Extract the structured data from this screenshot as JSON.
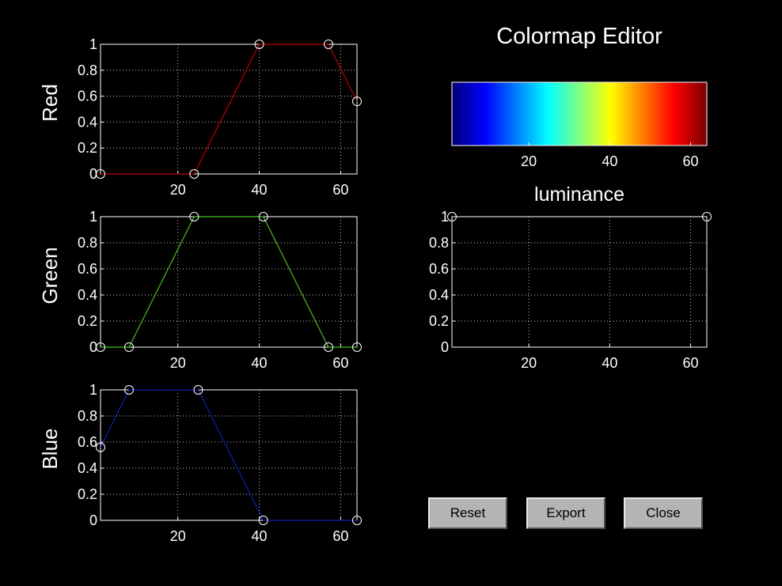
{
  "window": {
    "title": "Colormap Editor"
  },
  "buttons": {
    "reset": "Reset",
    "export": "Export",
    "close": "Close"
  },
  "colors": {
    "background": "#000000",
    "red_line": "#c00000",
    "green_line": "#40c020",
    "blue_line": "#1020b0",
    "axes": "#ffffff",
    "grid": "#c8c8c8"
  },
  "chart_data": [
    {
      "type": "line",
      "id": "red",
      "ylabel": "Red",
      "xlim": [
        1,
        64
      ],
      "ylim": [
        0,
        1
      ],
      "xticks": [
        20,
        40,
        60
      ],
      "yticks": [
        0,
        0.2,
        0.4,
        0.6,
        0.8,
        1
      ],
      "ytick_labels": [
        "0",
        "0.2",
        "0.4",
        "0.6",
        "0.8",
        "1"
      ],
      "grid": true,
      "color": "#c00000",
      "x": [
        1,
        24,
        40,
        57,
        64
      ],
      "y": [
        0,
        0,
        1,
        1,
        0.56
      ],
      "markers": true
    },
    {
      "type": "line",
      "id": "green",
      "ylabel": "Green",
      "xlim": [
        1,
        64
      ],
      "ylim": [
        0,
        1
      ],
      "xticks": [
        20,
        40,
        60
      ],
      "yticks": [
        0,
        0.2,
        0.4,
        0.6,
        0.8,
        1
      ],
      "ytick_labels": [
        "0",
        "0.2",
        "0.4",
        "0.6",
        "0.8",
        "1"
      ],
      "grid": true,
      "color": "#40c020",
      "x": [
        1,
        8,
        24,
        41,
        57,
        64
      ],
      "y": [
        0,
        0,
        1,
        1,
        0,
        0
      ],
      "markers": true
    },
    {
      "type": "line",
      "id": "blue",
      "ylabel": "Blue",
      "xlim": [
        1,
        64
      ],
      "ylim": [
        0,
        1
      ],
      "xticks": [
        20,
        40,
        60
      ],
      "yticks": [
        0,
        0.2,
        0.4,
        0.6,
        0.8,
        1
      ],
      "ytick_labels": [
        "0",
        "0.2",
        "0.4",
        "0.6",
        "0.8",
        "1"
      ],
      "grid": true,
      "color": "#1020b0",
      "x": [
        1,
        8,
        25,
        41,
        64
      ],
      "y": [
        0.56,
        1,
        1,
        0,
        0
      ],
      "markers": true
    },
    {
      "type": "line",
      "id": "luminance",
      "title": "luminance",
      "xlim": [
        1,
        64
      ],
      "ylim": [
        0,
        1
      ],
      "xticks": [
        20,
        40,
        60
      ],
      "yticks": [
        0,
        0.2,
        0.4,
        0.6,
        0.8,
        1
      ],
      "ytick_labels": [
        "0",
        "0.2",
        "0.4",
        "0.6",
        "0.8",
        "1"
      ],
      "grid": true,
      "color": "#ffffff",
      "x": [
        1,
        64
      ],
      "y": [
        1,
        1
      ],
      "markers": true,
      "line": false
    },
    {
      "type": "heatmap",
      "id": "colorbar",
      "colormap": "jet",
      "n_colors": 64,
      "xlim": [
        1,
        64
      ],
      "xticks": [
        20,
        40,
        60
      ]
    }
  ]
}
